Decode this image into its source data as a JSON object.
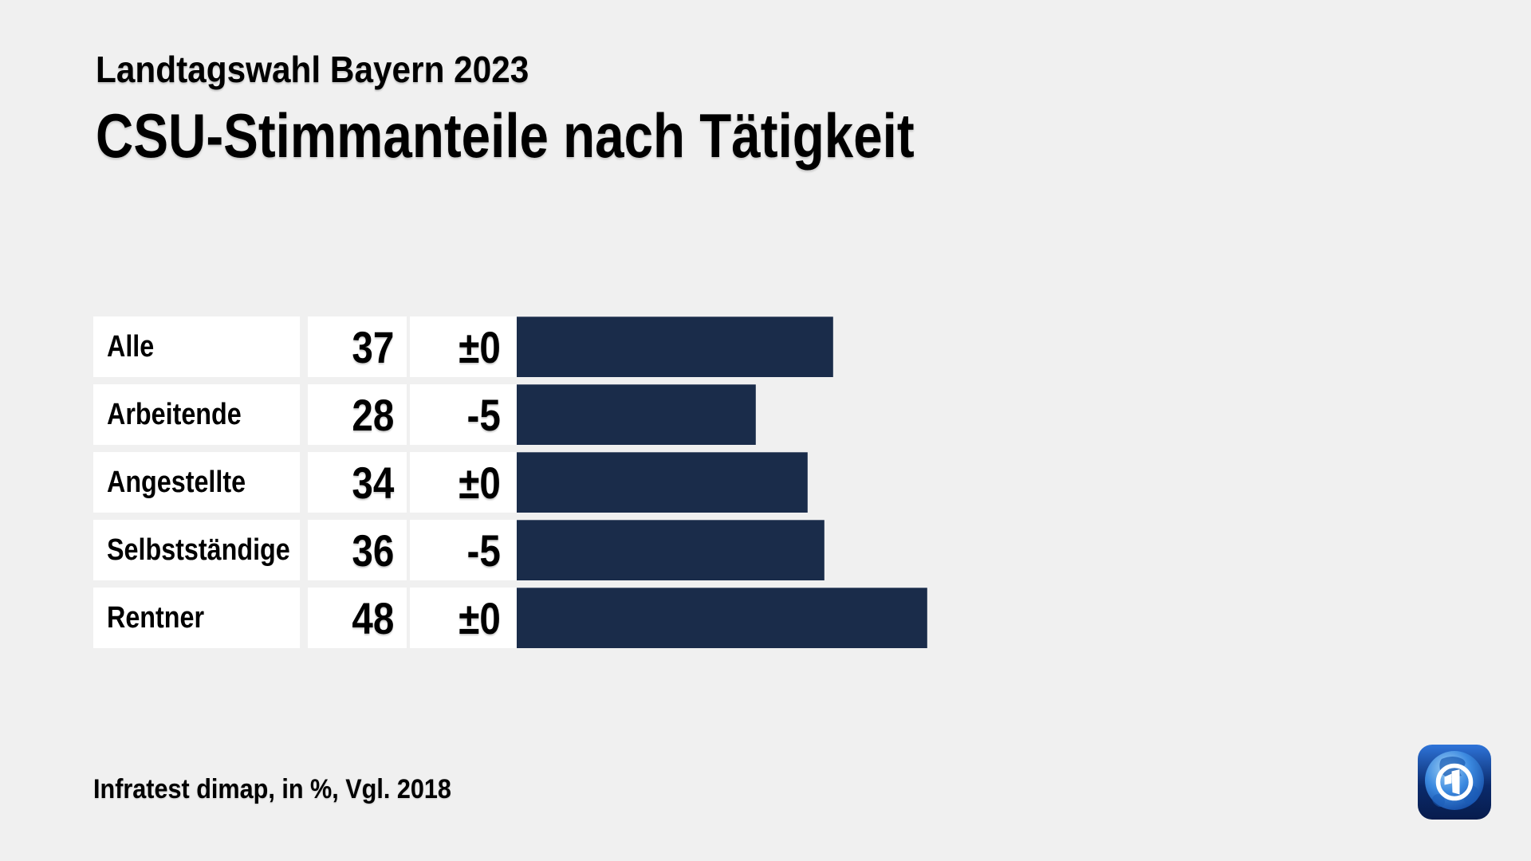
{
  "page": {
    "background_color": "#f0f0f0",
    "text_color": "#000000"
  },
  "header": {
    "pretitle": "Landtagswahl Bayern 2023",
    "title": "CSU-Stimmanteile nach Tätigkeit"
  },
  "chart_data": {
    "type": "bar",
    "orientation": "horizontal",
    "title": "CSU-Stimmanteile nach Tätigkeit",
    "subtitle": "Landtagswahl Bayern 2023",
    "unit": "%",
    "categories": [
      "Alle",
      "Arbeitende",
      "Angestellte",
      "Selbstständige",
      "Rentner"
    ],
    "values": [
      37,
      28,
      34,
      36,
      48
    ],
    "changes": [
      "±0",
      "-5",
      "±0",
      "-5",
      "±0"
    ],
    "value_range": [
      0,
      48
    ],
    "grid": false,
    "legend": false,
    "bar_color": "#1a2c4a",
    "row_background_color": "#ffffff"
  },
  "footer": {
    "source": "Infratest dimap, in %, Vgl. 2018"
  },
  "logo": {
    "icon": "ard-globe-logo",
    "colors": {
      "square_top": "#2e74d9",
      "square_bottom": "#071c4d",
      "globe_light": "#9fd0f5",
      "globe_dark": "#0b3d97",
      "mark": "#ffffff"
    }
  }
}
